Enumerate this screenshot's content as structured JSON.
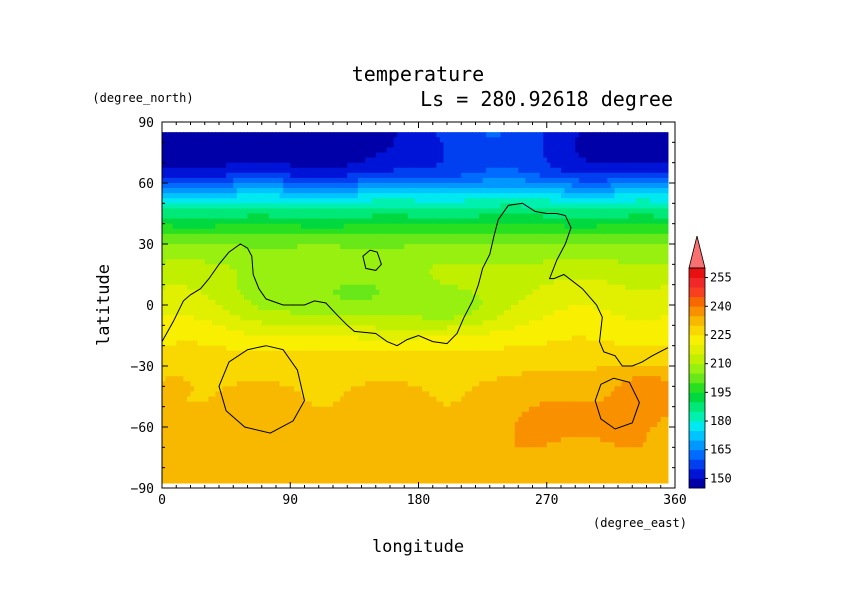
{
  "chart_data": {
    "type": "heatmap",
    "title": "temperature",
    "subtitle": "Ls = 280.92618 degree",
    "xlabel": "longitude",
    "ylabel": "latitude",
    "x_unit": "(degree_east)",
    "y_unit": "(degree_north)",
    "xlim": [
      0,
      360
    ],
    "ylim": [
      -90,
      90
    ],
    "x_ticks": [
      {
        "value": 0,
        "label": "0"
      },
      {
        "value": 90,
        "label": "90"
      },
      {
        "value": 180,
        "label": "180"
      },
      {
        "value": 270,
        "label": "270"
      },
      {
        "value": 360,
        "label": "360"
      }
    ],
    "y_ticks": [
      {
        "value": 90,
        "label": "90"
      },
      {
        "value": 60,
        "label": "60"
      },
      {
        "value": 30,
        "label": "30"
      },
      {
        "value": 0,
        "label": "0"
      },
      {
        "value": -30,
        "label": "−30"
      },
      {
        "value": -60,
        "label": "−60"
      },
      {
        "value": -90,
        "label": "−90"
      }
    ],
    "data_extent": {
      "lon": [
        0,
        355
      ],
      "lat": [
        -85,
        85
      ]
    },
    "colorbar": {
      "levels": [
        145,
        150,
        155,
        160,
        165,
        170,
        175,
        180,
        185,
        190,
        195,
        200,
        205,
        210,
        215,
        220,
        225,
        230,
        235,
        240,
        245,
        250,
        255,
        260
      ],
      "colors": [
        "#0000a8",
        "#0014d8",
        "#0040f0",
        "#006cff",
        "#0098ff",
        "#00c4ff",
        "#00e8f0",
        "#00f0b0",
        "#00e878",
        "#00d840",
        "#28e020",
        "#68e818",
        "#98f010",
        "#c0f000",
        "#e0f000",
        "#f8f000",
        "#f8d800",
        "#f8b800",
        "#f89000",
        "#f86800",
        "#f84020",
        "#f02828",
        "#e81010"
      ],
      "over_color": "#f87070",
      "tick_labels": [
        "150",
        "165",
        "180",
        "195",
        "210",
        "225",
        "240",
        "255"
      ],
      "tick_values": [
        150,
        165,
        180,
        195,
        210,
        225,
        240,
        255
      ]
    },
    "zonal_profile": {
      "lat": [
        85,
        80,
        75,
        70,
        65,
        62,
        59,
        56,
        53,
        50,
        47,
        44,
        41,
        38,
        35,
        32,
        29,
        26,
        23,
        20,
        17,
        14,
        11,
        8,
        5,
        2,
        -1,
        -4,
        -7,
        -10,
        -13,
        -16,
        -19,
        -22,
        -25,
        -30,
        -35,
        -40,
        -50,
        -60,
        -70,
        -80,
        -85
      ],
      "temp": [
        146,
        146,
        147,
        149,
        153,
        158,
        164,
        170,
        176,
        181,
        185,
        189,
        193,
        196,
        199,
        202,
        205,
        207,
        209,
        211,
        213,
        214,
        215,
        216,
        217,
        218,
        219,
        220,
        221,
        222,
        223,
        224,
        225,
        226,
        227,
        228,
        229,
        230,
        231,
        232,
        233,
        233,
        233
      ]
    },
    "topography_contour": {
      "level": "0",
      "paths": [
        [
          [
            0,
            -18
          ],
          [
            8,
            -8
          ],
          [
            15,
            2
          ],
          [
            20,
            5
          ],
          [
            27,
            8
          ],
          [
            33,
            13
          ],
          [
            40,
            20
          ],
          [
            47,
            26
          ],
          [
            55,
            30
          ],
          [
            60,
            28
          ],
          [
            63,
            24
          ],
          [
            64,
            15
          ],
          [
            68,
            8
          ],
          [
            73,
            3
          ],
          [
            85,
            0
          ],
          [
            100,
            0
          ],
          [
            107,
            2
          ],
          [
            115,
            1
          ],
          [
            123,
            -5
          ],
          [
            130,
            -10
          ],
          [
            135,
            -13
          ],
          [
            150,
            -14
          ],
          [
            158,
            -18
          ],
          [
            165,
            -20
          ],
          [
            172,
            -17
          ],
          [
            180,
            -15
          ],
          [
            190,
            -18
          ],
          [
            200,
            -19
          ],
          [
            207,
            -14
          ],
          [
            212,
            -6
          ],
          [
            218,
            2
          ],
          [
            222,
            10
          ],
          [
            225,
            18
          ],
          [
            230,
            25
          ],
          [
            233,
            34
          ],
          [
            236,
            42
          ],
          [
            243,
            49
          ],
          [
            253,
            50
          ],
          [
            262,
            46
          ],
          [
            270,
            45
          ],
          [
            277,
            45
          ],
          [
            283,
            44
          ],
          [
            287,
            38
          ],
          [
            283,
            30
          ],
          [
            277,
            22
          ],
          [
            272,
            13
          ],
          [
            275,
            13
          ],
          [
            282,
            15
          ],
          [
            295,
            8
          ],
          [
            305,
            0
          ],
          [
            309,
            -6
          ],
          [
            307,
            -18
          ],
          [
            310,
            -23
          ],
          [
            318,
            -25
          ],
          [
            323,
            -30
          ],
          [
            330,
            -30
          ],
          [
            337,
            -28
          ],
          [
            344,
            -25
          ],
          [
            355,
            -21
          ]
        ],
        [
          [
            146,
            27
          ],
          [
            151,
            26
          ],
          [
            154,
            20
          ],
          [
            150,
            17
          ],
          [
            143,
            18
          ],
          [
            141,
            24
          ],
          [
            146,
            27
          ]
        ],
        [
          [
            73,
            -20
          ],
          [
            85,
            -22
          ],
          [
            95,
            -32
          ],
          [
            100,
            -47
          ],
          [
            92,
            -57
          ],
          [
            76,
            -63
          ],
          [
            58,
            -60
          ],
          [
            45,
            -52
          ],
          [
            40,
            -40
          ],
          [
            47,
            -28
          ],
          [
            60,
            -22
          ],
          [
            73,
            -20
          ]
        ],
        [
          [
            317,
            -36
          ],
          [
            328,
            -38
          ],
          [
            335,
            -48
          ],
          [
            330,
            -58
          ],
          [
            318,
            -61
          ],
          [
            308,
            -56
          ],
          [
            304,
            -47
          ],
          [
            308,
            -39
          ],
          [
            317,
            -36
          ]
        ]
      ]
    },
    "warm_spots": [
      {
        "lon": 342,
        "lat": -44,
        "rlon": 28,
        "rlat": 13,
        "temp": 239
      },
      {
        "lon": 292,
        "lat": -56,
        "rlon": 52,
        "rlat": 22,
        "temp": 237
      },
      {
        "lon": 15,
        "lat": -66,
        "rlon": 16,
        "rlat": 13,
        "temp": 234
      },
      {
        "lon": 10,
        "lat": -40,
        "rlon": 12,
        "rlat": 5,
        "temp": 232
      }
    ],
    "cool_spots": [
      {
        "lon": 120,
        "lat": 6,
        "rlon": 85,
        "rlat": 20,
        "temp": 204
      },
      {
        "lon": 200,
        "lat": 0,
        "rlon": 40,
        "rlat": 14,
        "temp": 206
      }
    ],
    "polar_bulge": {
      "lon": 230,
      "lat": 85,
      "rlon": 65,
      "rlat": 28,
      "delta": 14
    }
  }
}
